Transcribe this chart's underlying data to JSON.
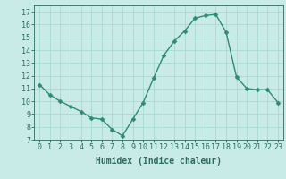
{
  "x": [
    0,
    1,
    2,
    3,
    4,
    5,
    6,
    7,
    8,
    9,
    10,
    11,
    12,
    13,
    14,
    15,
    16,
    17,
    18,
    19,
    20,
    21,
    22,
    23
  ],
  "y": [
    11.3,
    10.5,
    10.0,
    9.6,
    9.2,
    8.7,
    8.6,
    7.8,
    7.3,
    8.6,
    9.9,
    11.8,
    13.6,
    14.7,
    15.5,
    16.5,
    16.7,
    16.8,
    15.4,
    11.9,
    11.0,
    10.9,
    10.9,
    9.9
  ],
  "line_color": "#2e8b74",
  "marker": "D",
  "marker_size": 2.5,
  "line_width": 1.0,
  "bg_color": "#c8ebe8",
  "grid_color": "#a8d8d2",
  "xlabel": "Humidex (Indice chaleur)",
  "xlim": [
    -0.5,
    23.5
  ],
  "ylim": [
    7,
    17.5
  ],
  "yticks": [
    7,
    8,
    9,
    10,
    11,
    12,
    13,
    14,
    15,
    16,
    17
  ],
  "xtick_labels": [
    "0",
    "1",
    "2",
    "3",
    "4",
    "5",
    "6",
    "7",
    "8",
    "9",
    "10",
    "11",
    "12",
    "13",
    "14",
    "15",
    "16",
    "17",
    "18",
    "19",
    "20",
    "21",
    "22",
    "23"
  ],
  "xlabel_fontsize": 7,
  "tick_fontsize": 6,
  "tick_color": "#2e6b60",
  "axis_color": "#2e6b60"
}
